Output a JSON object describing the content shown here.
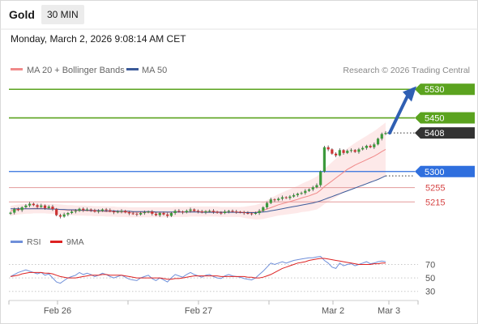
{
  "header": {
    "instrument": "Gold",
    "period": "30 MIN"
  },
  "datetime": "Monday, March 2, 2026 9:08:14 AM CET",
  "legend": {
    "item1": "MA 20 + Bollinger Bands",
    "item2": "MA 50",
    "credit": "Research © 2026 Trading Central"
  },
  "rsi_legend": {
    "item1": "RSI",
    "item2": "9MA"
  },
  "colors": {
    "target": "#5ba31f",
    "current": "#333333",
    "support": "#2f6fde",
    "support2": "#d64545",
    "ma20": "#f08a8a",
    "ma50": "#3b5a99",
    "rsi": "#6f8fd9",
    "rsi_ma": "#dd2222",
    "arrow": "#2f5fb3"
  },
  "chart_data": [
    {
      "type": "candlestick",
      "title": "Gold 30 MIN",
      "x_ticks": [
        "Feb 26",
        "Feb 27",
        "Mar 2",
        "Mar 3"
      ],
      "price_ylim": [
        5150,
        5560
      ],
      "levels": [
        {
          "label": "5530",
          "value": 5530,
          "kind": "target"
        },
        {
          "label": "5450",
          "value": 5450,
          "kind": "target"
        },
        {
          "label": "5408",
          "value": 5408,
          "kind": "current"
        },
        {
          "label": "5300",
          "value": 5300,
          "kind": "pivot"
        },
        {
          "label": "5255",
          "value": 5255,
          "kind": "support"
        },
        {
          "label": "5215",
          "value": 5215,
          "kind": "support"
        }
      ],
      "close_series": [
        5185,
        5195,
        5192,
        5200,
        5205,
        5210,
        5206,
        5201,
        5205,
        5198,
        5202,
        5195,
        5178,
        5174,
        5180,
        5184,
        5188,
        5190,
        5196,
        5192,
        5194,
        5192,
        5188,
        5190,
        5194,
        5192,
        5189,
        5186,
        5188,
        5190,
        5186,
        5183,
        5182,
        5180,
        5184,
        5186,
        5188,
        5182,
        5178,
        5184,
        5180,
        5176,
        5184,
        5190,
        5188,
        5186,
        5190,
        5194,
        5190,
        5188,
        5186,
        5189,
        5190,
        5187,
        5185,
        5184,
        5188,
        5190,
        5188,
        5187,
        5186,
        5184,
        5183,
        5182,
        5184,
        5190,
        5200,
        5212,
        5222,
        5220,
        5224,
        5228,
        5226,
        5230,
        5234,
        5238,
        5240,
        5246,
        5250,
        5256,
        5262,
        5300,
        5368,
        5362,
        5350,
        5345,
        5360,
        5352,
        5358,
        5360,
        5355,
        5362,
        5366,
        5372,
        5368,
        5376,
        5392,
        5405,
        5408
      ],
      "ma20_series": [
        5190,
        5192,
        5194,
        5195,
        5196,
        5196,
        5197,
        5197,
        5197,
        5197,
        5196,
        5196,
        5195,
        5194,
        5193,
        5192,
        5192,
        5191,
        5191,
        5191,
        5190,
        5190,
        5189,
        5189,
        5189,
        5188,
        5188,
        5188,
        5187,
        5187,
        5187,
        5186,
        5186,
        5186,
        5186,
        5186,
        5186,
        5186,
        5186,
        5186,
        5186,
        5186,
        5186,
        5187,
        5187,
        5187,
        5187,
        5188,
        5188,
        5188,
        5188,
        5188,
        5188,
        5188,
        5188,
        5187,
        5187,
        5187,
        5187,
        5187,
        5187,
        5186,
        5186,
        5186,
        5186,
        5188,
        5191,
        5195,
        5199,
        5203,
        5207,
        5210,
        5213,
        5216,
        5219,
        5222,
        5226,
        5229,
        5232,
        5236,
        5240,
        5248,
        5258,
        5266,
        5274,
        5282,
        5290,
        5298,
        5306,
        5312,
        5318,
        5323,
        5328,
        5333,
        5338,
        5343,
        5349,
        5356,
        5362
      ],
      "ma50_series": [
        5196,
        5196,
        5196,
        5196,
        5196,
        5196,
        5196,
        5196,
        5196,
        5196,
        5195,
        5195,
        5195,
        5194,
        5194,
        5193,
        5193,
        5193,
        5192,
        5192,
        5192,
        5191,
        5191,
        5191,
        5190,
        5190,
        5190,
        5190,
        5189,
        5189,
        5189,
        5189,
        5188,
        5188,
        5188,
        5188,
        5188,
        5188,
        5187,
        5187,
        5187,
        5187,
        5187,
        5187,
        5187,
        5187,
        5187,
        5187,
        5187,
        5187,
        5186,
        5186,
        5186,
        5186,
        5186,
        5186,
        5186,
        5186,
        5186,
        5186,
        5185,
        5185,
        5185,
        5185,
        5185,
        5186,
        5187,
        5188,
        5190,
        5192,
        5194,
        5196,
        5198,
        5200,
        5202,
        5204,
        5206,
        5208,
        5210,
        5212,
        5215,
        5218,
        5222,
        5226,
        5230,
        5234,
        5238,
        5242,
        5246,
        5250,
        5254,
        5258,
        5262,
        5266,
        5270,
        5274,
        5278,
        5283,
        5288
      ],
      "rsi_ylim": [
        20,
        85
      ],
      "rsi_levels": [
        70,
        50,
        30
      ],
      "rsi_series": [
        52,
        55,
        58,
        60,
        62,
        60,
        58,
        56,
        58,
        54,
        56,
        50,
        44,
        42,
        46,
        50,
        52,
        54,
        58,
        55,
        57,
        55,
        52,
        54,
        57,
        55,
        52,
        50,
        52,
        54,
        51,
        48,
        47,
        46,
        50,
        52,
        54,
        49,
        46,
        50,
        47,
        44,
        50,
        55,
        53,
        51,
        55,
        58,
        55,
        53,
        51,
        54,
        55,
        52,
        50,
        49,
        53,
        55,
        53,
        52,
        51,
        49,
        48,
        47,
        50,
        55,
        60,
        66,
        72,
        70,
        72,
        74,
        72,
        74,
        76,
        77,
        78,
        79,
        80,
        80,
        81,
        82,
        76,
        72,
        66,
        64,
        72,
        68,
        70,
        71,
        68,
        70,
        72,
        74,
        71,
        72,
        74,
        75,
        74
      ],
      "rsi_ma_series": [
        52,
        53,
        54,
        56,
        57,
        58,
        58,
        58,
        58,
        57,
        57,
        56,
        54,
        52,
        51,
        50,
        50,
        50,
        51,
        52,
        53,
        54,
        54,
        54,
        55,
        55,
        54,
        54,
        54,
        54,
        53,
        52,
        51,
        50,
        50,
        50,
        50,
        50,
        50,
        50,
        49,
        48,
        48,
        49,
        49,
        50,
        51,
        52,
        53,
        53,
        53,
        53,
        53,
        53,
        53,
        52,
        52,
        52,
        52,
        52,
        52,
        52,
        51,
        51,
        50,
        50,
        51,
        53,
        55,
        58,
        61,
        64,
        66,
        68,
        70,
        72,
        73,
        74,
        76,
        77,
        78,
        79,
        79,
        78,
        77,
        76,
        75,
        74,
        73,
        72,
        71,
        70,
        70,
        70,
        70,
        71,
        71,
        72,
        72
      ]
    }
  ]
}
